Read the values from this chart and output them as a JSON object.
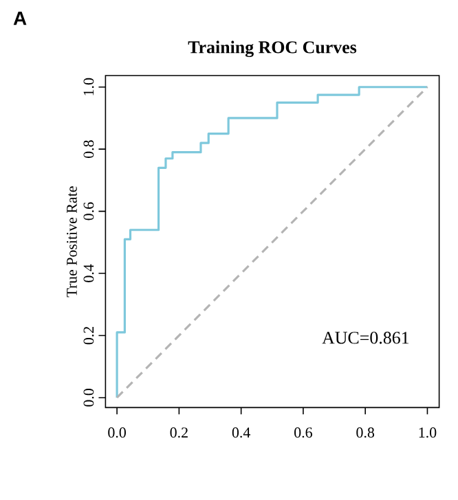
{
  "chart_data": {
    "type": "line",
    "title": "Training ROC Curves",
    "ylabel": "True Positive Rate",
    "annotations": [
      "A",
      "AUC=0.861"
    ],
    "xlim": [
      -0.037,
      1.038
    ],
    "ylim": [
      -0.032,
      1.037
    ],
    "xticks": [
      {
        "value": 0,
        "label": "0.0"
      },
      0.2,
      0.4,
      0.6,
      0.8,
      {
        "value": 1,
        "label": "1.0"
      }
    ],
    "yticks": [
      {
        "value": 0,
        "label": "0.0"
      },
      0.2,
      0.4,
      0.6,
      0.8,
      {
        "value": 1,
        "label": "1.0"
      }
    ],
    "series": [
      {
        "color": "#7ec8dc",
        "line_style": "solid",
        "x": [
          0,
          0,
          0.025,
          0.025,
          0.043,
          0.043,
          0.134,
          0.134,
          0.157,
          0.157,
          0.179,
          0.179,
          0.27,
          0.27,
          0.295,
          0.295,
          0.359,
          0.359,
          0.516,
          0.516,
          0.647,
          0.647,
          0.78,
          0.78,
          1
        ],
        "values": [
          0,
          0.21,
          0.21,
          0.51,
          0.51,
          0.54,
          0.54,
          0.74,
          0.74,
          0.77,
          0.77,
          0.79,
          0.79,
          0.82,
          0.82,
          0.85,
          0.85,
          0.9,
          0.9,
          0.95,
          0.95,
          0.975,
          0.975,
          1,
          1
        ]
      },
      {
        "color": "#b4b4b4",
        "line_style": "dashed",
        "x": [
          0,
          1
        ],
        "values": [
          0,
          1
        ]
      }
    ]
  }
}
